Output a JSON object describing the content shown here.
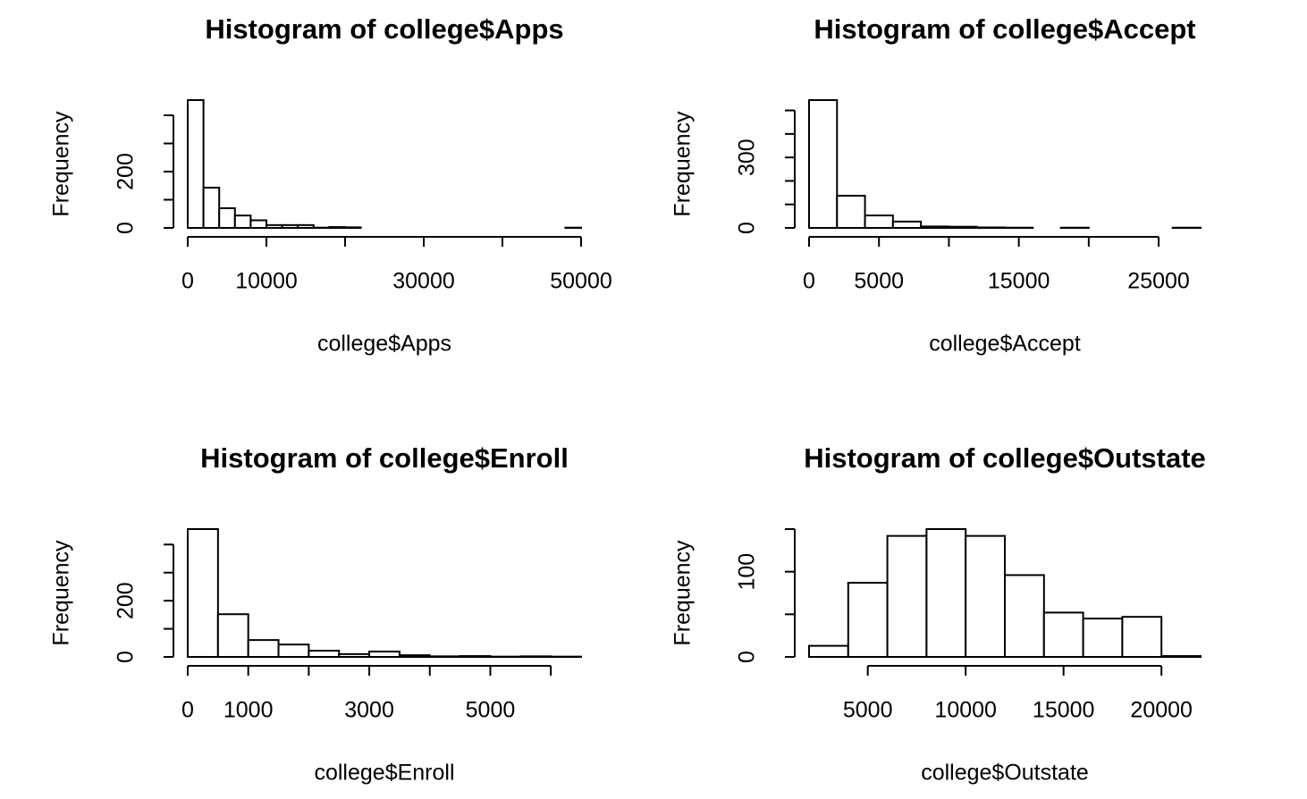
{
  "chart_data": [
    {
      "type": "histogram",
      "title": "Histogram of college$Apps",
      "xlabel": "college$Apps",
      "ylabel": "Frequency",
      "color": "#ffffff",
      "bins": [
        0,
        2000,
        4000,
        6000,
        8000,
        10000,
        12000,
        14000,
        16000,
        18000,
        20000,
        22000,
        24000,
        26000,
        28000,
        30000,
        32000,
        34000,
        36000,
        38000,
        40000,
        42000,
        44000,
        46000,
        48000,
        50000
      ],
      "values": [
        454,
        143,
        70,
        44,
        27,
        10,
        10,
        10,
        1,
        3,
        2,
        0,
        0,
        0,
        0,
        0,
        0,
        0,
        0,
        0,
        0,
        0,
        0,
        0,
        1
      ],
      "xlim": [
        0,
        50000
      ],
      "ylim": [
        0,
        454
      ],
      "xticks": [
        0,
        10000,
        30000,
        50000
      ],
      "xticks_minor": [
        20000,
        40000
      ],
      "yticks": [
        0,
        200
      ],
      "yticks_minor": [
        100,
        300,
        400
      ]
    },
    {
      "type": "histogram",
      "title": "Histogram of college$Accept",
      "xlabel": "college$Accept",
      "ylabel": "Frequency",
      "color": "#ffffff",
      "bins": [
        0,
        2000,
        4000,
        6000,
        8000,
        10000,
        12000,
        14000,
        16000,
        18000,
        20000,
        22000,
        24000,
        26000,
        28000
      ],
      "values": [
        544,
        137,
        53,
        27,
        6,
        5,
        2,
        1,
        0,
        1,
        0,
        0,
        0,
        1
      ],
      "xlim": [
        0,
        28000
      ],
      "ylim": [
        0,
        544
      ],
      "xticks": [
        0,
        5000,
        15000,
        25000
      ],
      "xticks_minor": [
        10000,
        20000
      ],
      "yticks": [
        0,
        300
      ],
      "yticks_minor": [
        100,
        200,
        400,
        500
      ]
    },
    {
      "type": "histogram",
      "title": "Histogram of college$Enroll",
      "xlabel": "college$Enroll",
      "ylabel": "Frequency",
      "color": "#ffffff",
      "bins": [
        0,
        500,
        1000,
        1500,
        2000,
        2500,
        3000,
        3500,
        4000,
        4500,
        5000,
        5500,
        6000,
        6500
      ],
      "values": [
        455,
        152,
        60,
        44,
        22,
        10,
        19,
        6,
        2,
        3,
        1,
        2,
        1
      ],
      "xlim": [
        0,
        6500
      ],
      "ylim": [
        0,
        455
      ],
      "xticks": [
        0,
        1000,
        3000,
        5000
      ],
      "xticks_minor": [
        2000,
        4000,
        6000
      ],
      "yticks": [
        0,
        200
      ],
      "yticks_minor": [
        100,
        300,
        400
      ]
    },
    {
      "type": "histogram",
      "title": "Histogram of college$Outstate",
      "xlabel": "college$Outstate",
      "ylabel": "Frequency",
      "color": "#ffffff",
      "bins": [
        2000,
        4000,
        6000,
        8000,
        10000,
        12000,
        14000,
        16000,
        18000,
        20000,
        22000
      ],
      "values": [
        13,
        87,
        142,
        150,
        142,
        96,
        52,
        45,
        47,
        1
      ],
      "xlim": [
        2000,
        22000
      ],
      "ylim": [
        0,
        150
      ],
      "xticks": [
        5000,
        10000,
        15000,
        20000
      ],
      "xticks_minor": [],
      "yticks": [
        0,
        100
      ],
      "yticks_minor": [
        50,
        150
      ]
    }
  ]
}
